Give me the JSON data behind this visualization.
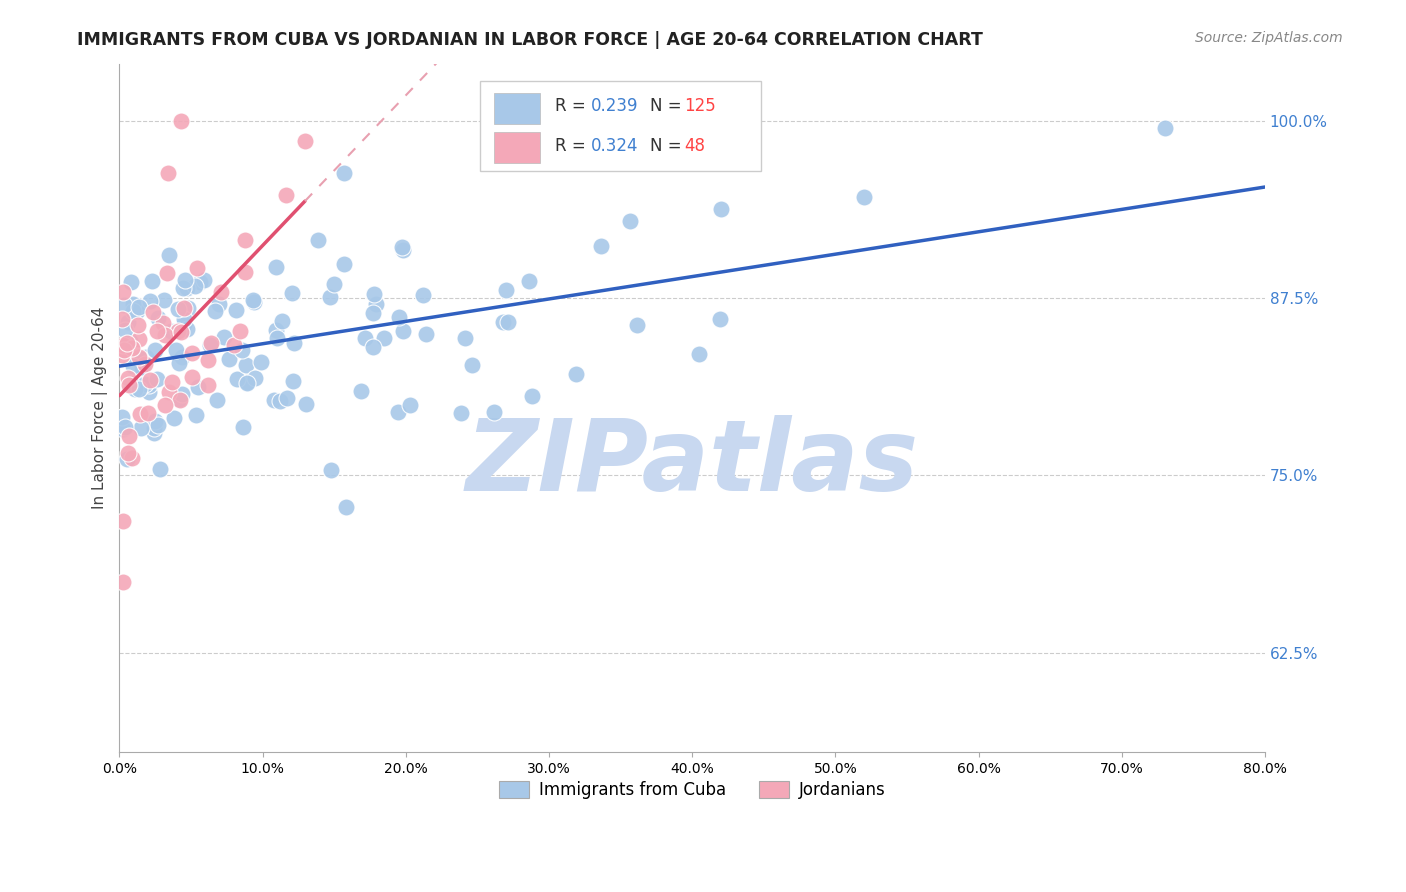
{
  "title": "IMMIGRANTS FROM CUBA VS JORDANIAN IN LABOR FORCE | AGE 20-64 CORRELATION CHART",
  "source": "Source: ZipAtlas.com",
  "ylabel": "In Labor Force | Age 20-64",
  "ytick_values": [
    0.625,
    0.75,
    0.875,
    1.0
  ],
  "xmin": 0.0,
  "xmax": 0.8,
  "ymin": 0.555,
  "ymax": 1.04,
  "cuba_R": 0.239,
  "cuba_N": 125,
  "jordan_R": 0.324,
  "jordan_N": 48,
  "cuba_color": "#a8c8e8",
  "jordan_color": "#f4a8b8",
  "cuba_line_color": "#3060c0",
  "jordan_line_color": "#e05070",
  "jordan_line_dash_color": "#e8a0b0",
  "watermark": "ZIPatlas",
  "watermark_color": "#c8d8f0",
  "background_color": "#ffffff"
}
